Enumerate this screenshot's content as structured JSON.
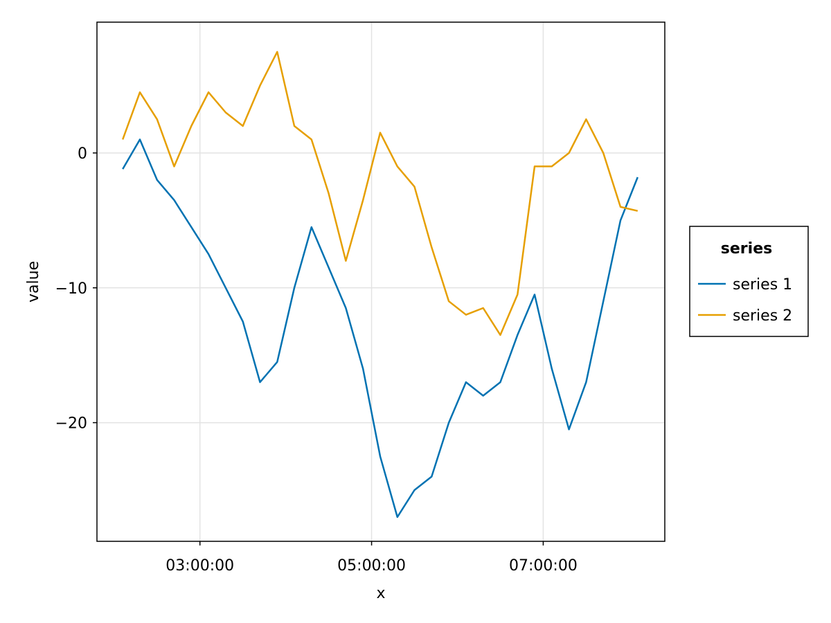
{
  "chart_data": {
    "type": "line",
    "title": "",
    "xlabel": "x",
    "ylabel": "value",
    "x_ticks": [
      "03:00:00",
      "05:00:00",
      "07:00:00"
    ],
    "y_ticks": [
      0,
      -10,
      -20
    ],
    "y_tick_labels": [
      "0",
      "−10",
      "−20"
    ],
    "xlim": [
      "01:48:00",
      "08:25:00"
    ],
    "ylim": [
      -28.8,
      9.7
    ],
    "grid": true,
    "legend": {
      "title": "series",
      "position": "right"
    },
    "colors": [
      "#0072b2",
      "#e69f00"
    ],
    "x": [
      "02:06:00",
      "02:18:00",
      "02:30:00",
      "02:42:00",
      "02:54:00",
      "03:06:00",
      "03:18:00",
      "03:30:00",
      "03:42:00",
      "03:54:00",
      "04:06:00",
      "04:18:00",
      "04:30:00",
      "04:42:00",
      "04:54:00",
      "05:06:00",
      "05:18:00",
      "05:30:00",
      "05:42:00",
      "05:54:00",
      "06:06:00",
      "06:18:00",
      "06:30:00",
      "06:42:00",
      "06:54:00",
      "07:06:00",
      "07:18:00",
      "07:30:00",
      "07:42:00",
      "07:54:00",
      "08:06:00"
    ],
    "series": [
      {
        "name": "series 1",
        "values": [
          -1.2,
          1.0,
          -2.0,
          -3.5,
          -5.5,
          -7.5,
          -10.0,
          -12.5,
          -17.0,
          -15.5,
          -10.0,
          -5.5,
          -8.5,
          -11.5,
          -16.0,
          -22.5,
          -27.0,
          -25.0,
          -24.0,
          -20.0,
          -17.0,
          -18.0,
          -17.0,
          -13.5,
          -10.5,
          -16.0,
          -20.5,
          -17.0,
          -11.0,
          -5.0,
          -1.8
        ]
      },
      {
        "name": "series 2",
        "values": [
          1.0,
          4.5,
          2.5,
          -1.0,
          2.0,
          4.5,
          3.0,
          2.0,
          5.0,
          7.5,
          2.0,
          1.0,
          -3.0,
          -8.0,
          -3.5,
          1.5,
          -1.0,
          -2.5,
          -7.0,
          -11.0,
          -12.0,
          -11.5,
          -13.5,
          -10.5,
          -1.0,
          -1.0,
          0.0,
          2.5,
          0.0,
          -4.0,
          -4.3
        ]
      }
    ]
  }
}
